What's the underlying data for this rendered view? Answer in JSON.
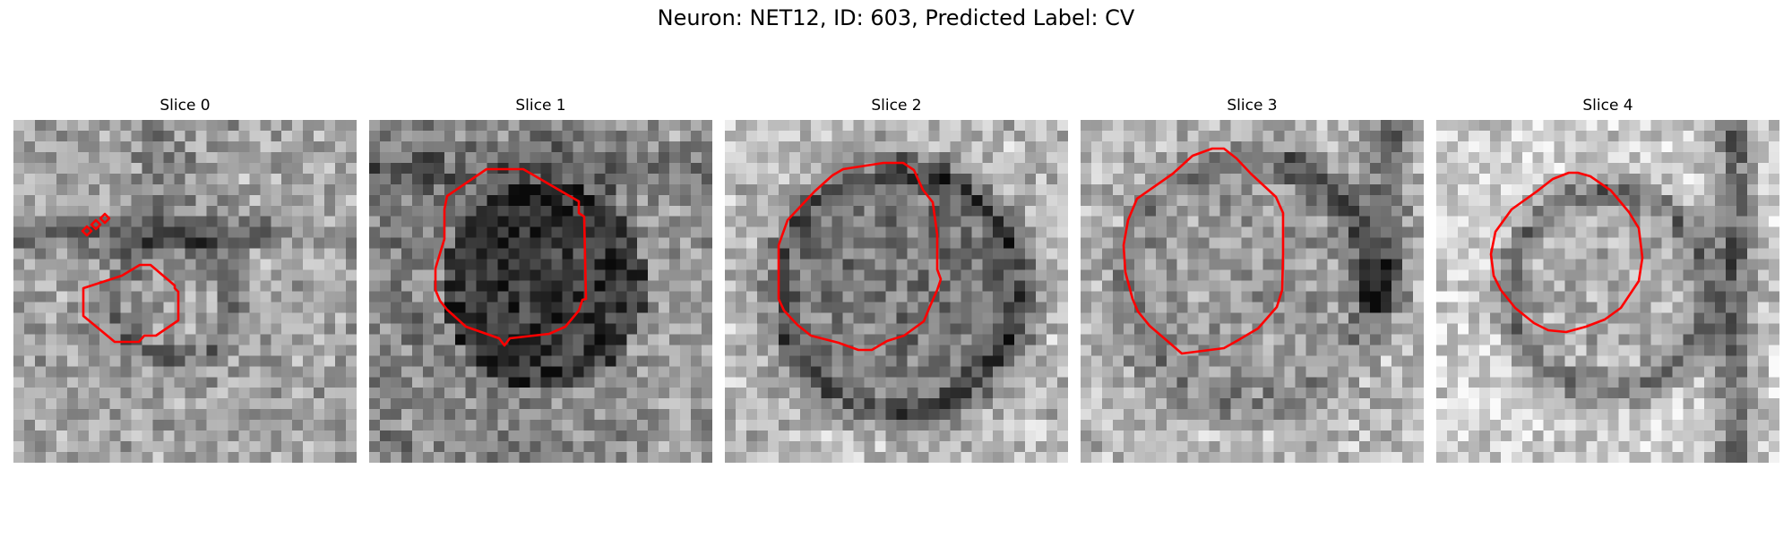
{
  "figure": {
    "title": "Neuron: NET12, ID: 603, Predicted Label: CV",
    "contour_color": "#ff0000",
    "panels": [
      {
        "title": "Slice 0"
      },
      {
        "title": "Slice 1"
      },
      {
        "title": "Slice 2"
      },
      {
        "title": "Slice 3"
      },
      {
        "title": "Slice 4"
      }
    ]
  }
}
